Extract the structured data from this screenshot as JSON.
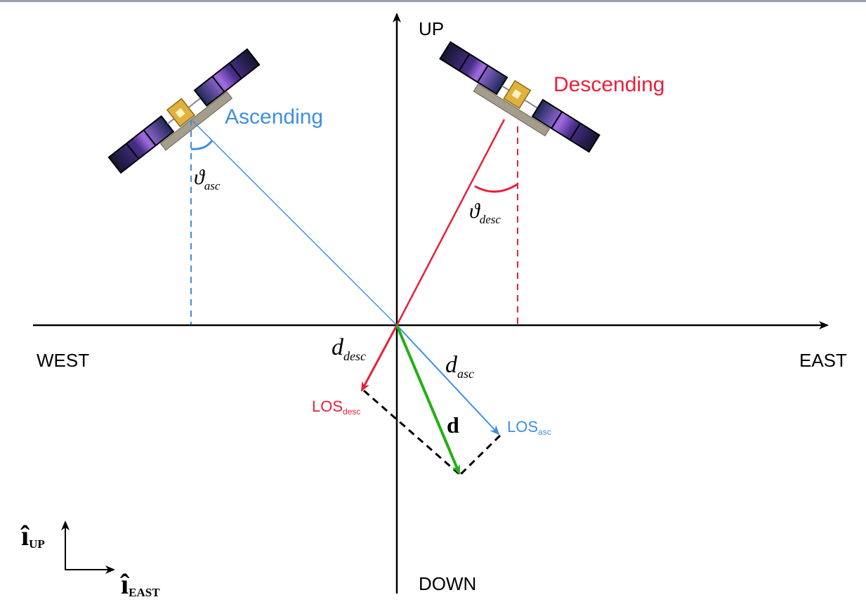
{
  "axes": {
    "up": "UP",
    "down": "DOWN",
    "west": "WEST",
    "east": "EAST"
  },
  "ascending": {
    "label": "Ascending",
    "angle_symbol": "ϑ",
    "angle_sub": "asc",
    "d_symbol": "d",
    "d_sub": "asc",
    "los": "LOS",
    "los_sub": "asc",
    "color": "#3d8fe0"
  },
  "descending": {
    "label": "Descending",
    "angle_symbol": "ϑ",
    "angle_sub": "desc",
    "d_symbol": "d",
    "d_sub": "desc",
    "los": "LOS",
    "los_sub": "desc",
    "color": "#e8203a"
  },
  "displacement": {
    "label": "d",
    "color": "#22b014"
  },
  "legend": {
    "up_symbol": "î",
    "up_sub": "UP",
    "east_symbol": "î",
    "east_sub": "EAST"
  },
  "colors": {
    "axis": "#000000",
    "dashed": "#000000"
  }
}
